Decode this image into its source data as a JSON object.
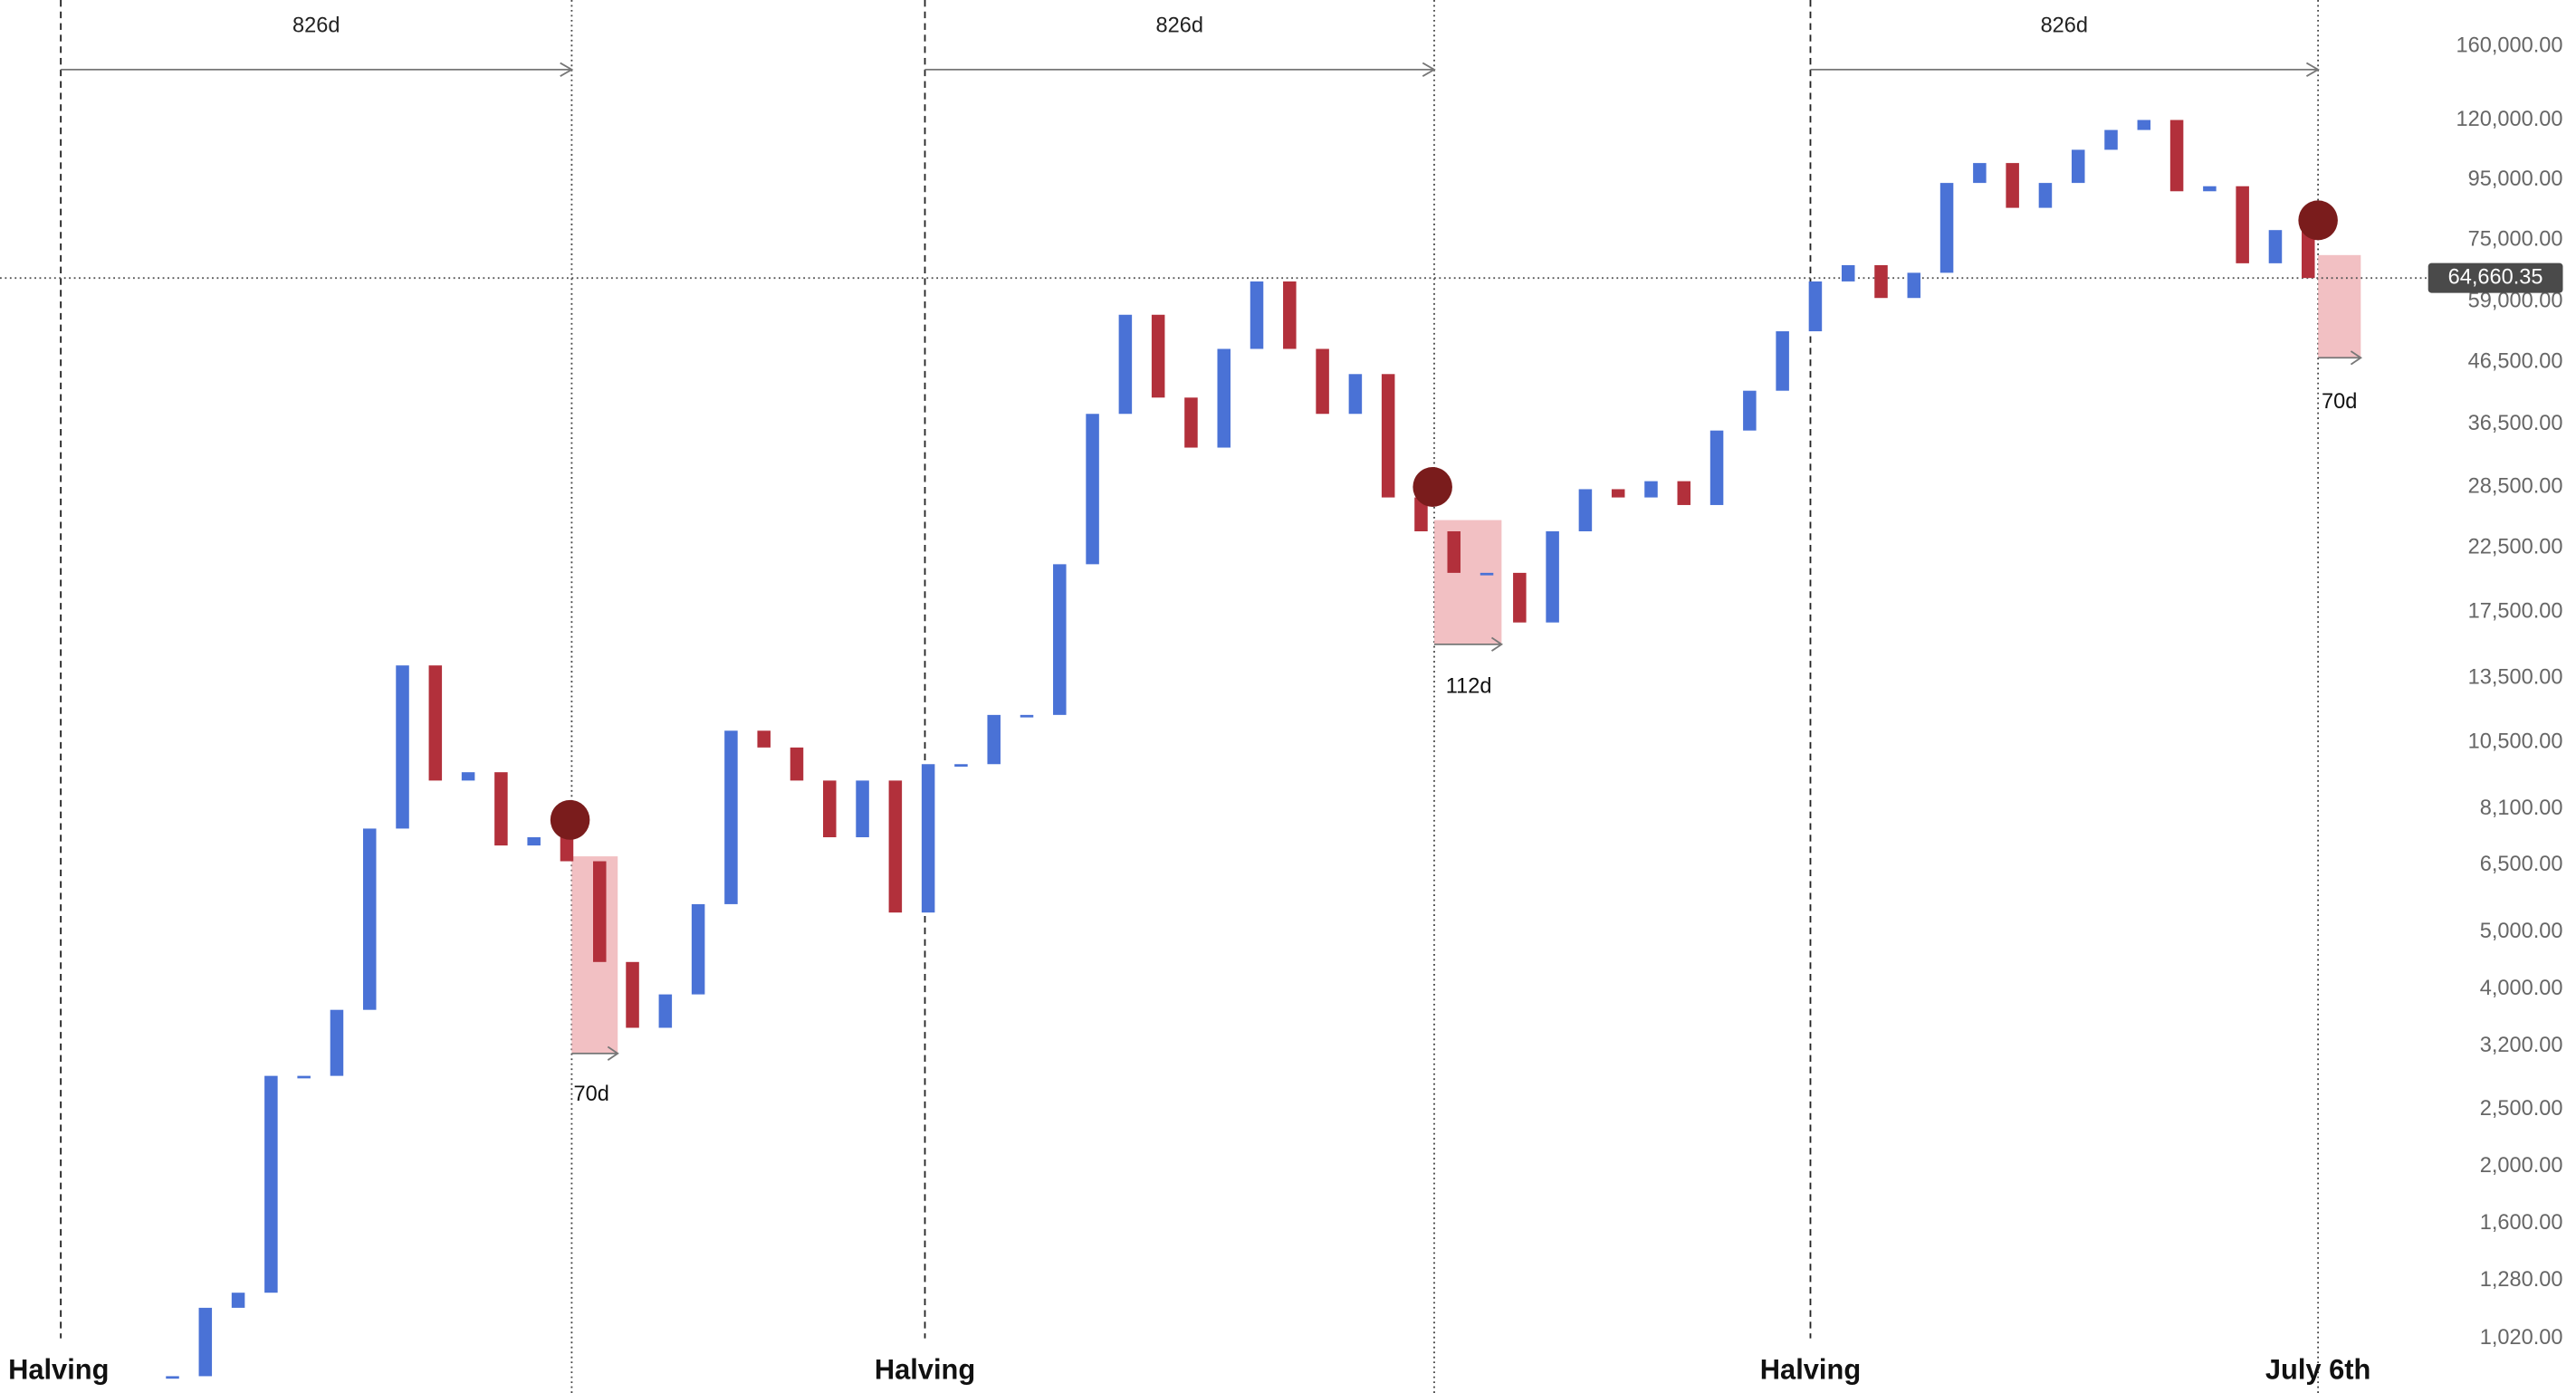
{
  "chart_data": {
    "type": "candlestick",
    "close": [
      880,
      1150,
      1220,
      2850,
      2850,
      3690,
      7500,
      14200,
      9050,
      9350,
      7020,
      7250,
      6600,
      4450,
      3440,
      3920,
      5580,
      11000,
      10300,
      9050,
      7250,
      9050,
      5400,
      9650,
      9650,
      11700,
      11700,
      21100,
      38000,
      56000,
      40500,
      33300,
      49000,
      63800,
      49000,
      38000,
      44400,
      27400,
      24000,
      20400,
      20400,
      16800,
      24000,
      28300,
      27400,
      29200,
      26600,
      35600,
      41600,
      52500,
      63800,
      68000,
      59800,
      66000,
      93800,
      101400,
      85100,
      93800,
      106800,
      115400,
      120000,
      90800,
      92600,
      68500,
      78000,
      64660
    ],
    "up_color": "#4a72d6",
    "down_color": "#b2303b",
    "log_scale": true,
    "ylim": [
      824,
      191900
    ],
    "yticks": [
      {
        "value": 160000,
        "label": "160,000.00"
      },
      {
        "value": 120000,
        "label": "120,000.00"
      },
      {
        "value": 95000,
        "label": "95,000.00"
      },
      {
        "value": 75000,
        "label": "75,000.00"
      },
      {
        "value": 59000,
        "label": "59,000.00"
      },
      {
        "value": 46500,
        "label": "46,500.00"
      },
      {
        "value": 36500,
        "label": "36,500.00"
      },
      {
        "value": 28500,
        "label": "28,500.00"
      },
      {
        "value": 22500,
        "label": "22,500.00"
      },
      {
        "value": 17500,
        "label": "17,500.00"
      },
      {
        "value": 13500,
        "label": "13,500.00"
      },
      {
        "value": 10500,
        "label": "10,500.00"
      },
      {
        "value": 8100,
        "label": "8,100.00"
      },
      {
        "value": 6500,
        "label": "6,500.00"
      },
      {
        "value": 5000,
        "label": "5,000.00"
      },
      {
        "value": 4000,
        "label": "4,000.00"
      },
      {
        "value": 3200,
        "label": "3,200.00"
      },
      {
        "value": 2500,
        "label": "2,500.00"
      },
      {
        "value": 2000,
        "label": "2,000.00"
      },
      {
        "value": 1600,
        "label": "1,600.00"
      },
      {
        "value": 1280,
        "label": "1,280.00"
      },
      {
        "value": 1020,
        "label": "1,020.00"
      }
    ],
    "last_price": {
      "value": 64660.35,
      "label": "64,660.35"
    },
    "cycle_labels": [
      "826d",
      "826d",
      "826d"
    ],
    "drawdown_labels": [
      "70d",
      "112d",
      "70d"
    ],
    "event_labels": [
      "Halving",
      "Halving",
      "Halving",
      "July 6th"
    ]
  }
}
